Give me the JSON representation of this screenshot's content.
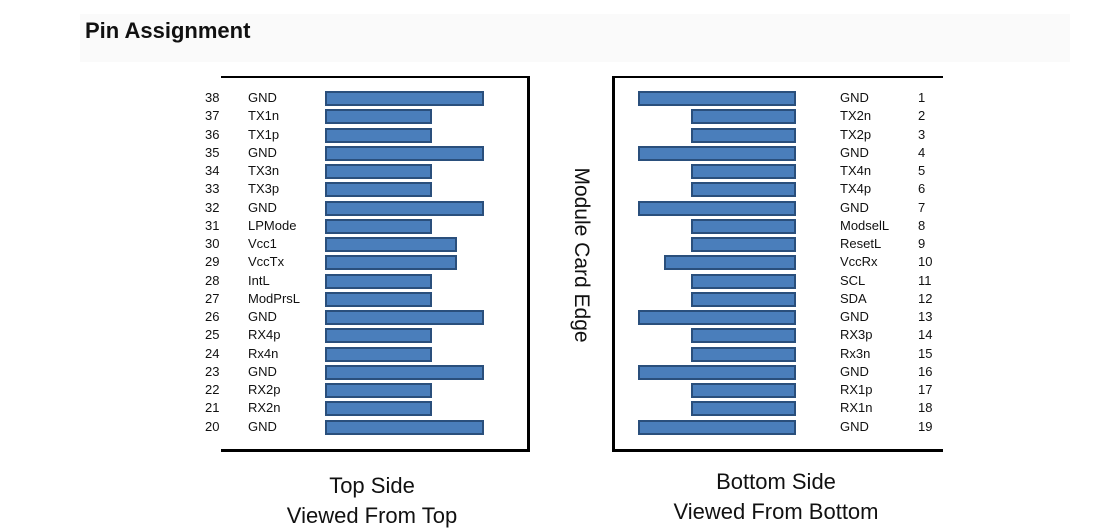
{
  "title": "Pin Assignment",
  "colors": {
    "pad_fill": "#4a7ebb",
    "pad_border": "#2a4f7c"
  },
  "edge_label": "Module Card Edge",
  "top_side": {
    "caption_line1": "Top Side",
    "caption_line2": "Viewed From Top",
    "pins": [
      {
        "num": "38",
        "label": "GND",
        "pad": "long"
      },
      {
        "num": "37",
        "label": "TX1n",
        "pad": "short"
      },
      {
        "num": "36",
        "label": "TX1p",
        "pad": "short"
      },
      {
        "num": "35",
        "label": "GND",
        "pad": "long"
      },
      {
        "num": "34",
        "label": "TX3n",
        "pad": "short"
      },
      {
        "num": "33",
        "label": "TX3p",
        "pad": "short"
      },
      {
        "num": "32",
        "label": "GND",
        "pad": "long"
      },
      {
        "num": "31",
        "label": "LPMode",
        "pad": "short"
      },
      {
        "num": "30",
        "label": "Vcc1",
        "pad": "medium"
      },
      {
        "num": "29",
        "label": "VccTx",
        "pad": "medium"
      },
      {
        "num": "28",
        "label": "IntL",
        "pad": "short"
      },
      {
        "num": "27",
        "label": "ModPrsL",
        "pad": "short"
      },
      {
        "num": "26",
        "label": "GND",
        "pad": "long"
      },
      {
        "num": "25",
        "label": "RX4p",
        "pad": "short"
      },
      {
        "num": "24",
        "label": "Rx4n",
        "pad": "short"
      },
      {
        "num": "23",
        "label": "GND",
        "pad": "long"
      },
      {
        "num": "22",
        "label": "RX2p",
        "pad": "short"
      },
      {
        "num": "21",
        "label": "RX2n",
        "pad": "short"
      },
      {
        "num": "20",
        "label": "GND",
        "pad": "long"
      }
    ]
  },
  "bottom_side": {
    "caption_line1": "Bottom Side",
    "caption_line2": "Viewed From Bottom",
    "pins": [
      {
        "num": "1",
        "label": "GND",
        "pad": "long"
      },
      {
        "num": "2",
        "label": "TX2n",
        "pad": "short"
      },
      {
        "num": "3",
        "label": "TX2p",
        "pad": "short"
      },
      {
        "num": "4",
        "label": "GND",
        "pad": "long"
      },
      {
        "num": "5",
        "label": "TX4n",
        "pad": "short"
      },
      {
        "num": "6",
        "label": "TX4p",
        "pad": "short"
      },
      {
        "num": "7",
        "label": "GND",
        "pad": "long"
      },
      {
        "num": "8",
        "label": "ModselL",
        "pad": "short"
      },
      {
        "num": "9",
        "label": "ResetL",
        "pad": "short"
      },
      {
        "num": "10",
        "label": "VccRx",
        "pad": "medium"
      },
      {
        "num": "11",
        "label": "SCL",
        "pad": "short"
      },
      {
        "num": "12",
        "label": "SDA",
        "pad": "short"
      },
      {
        "num": "13",
        "label": "GND",
        "pad": "long"
      },
      {
        "num": "14",
        "label": "RX3p",
        "pad": "short"
      },
      {
        "num": "15",
        "label": "Rx3n",
        "pad": "short"
      },
      {
        "num": "16",
        "label": "GND",
        "pad": "long"
      },
      {
        "num": "17",
        "label": "RX1p",
        "pad": "short"
      },
      {
        "num": "18",
        "label": "RX1n",
        "pad": "short"
      },
      {
        "num": "19",
        "label": "GND",
        "pad": "long"
      }
    ]
  }
}
